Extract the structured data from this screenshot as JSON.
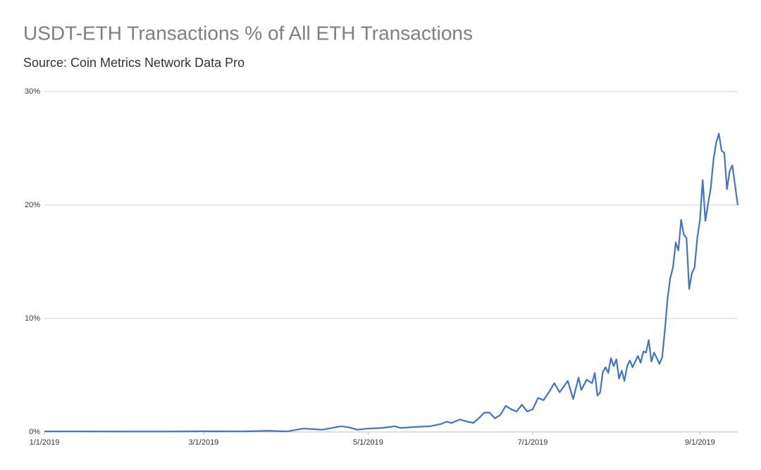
{
  "chart_data": {
    "type": "line",
    "title": "USDT-ETH Transactions % of All ETH Transactions",
    "subtitle": "Source: Coin Metrics Network Data Pro",
    "color": "#4472c4",
    "grid": true,
    "xlim": [
      "1/1/2019",
      "9/15/2019"
    ],
    "xticks": [
      "1/1/2019",
      "3/1/2019",
      "5/1/2019",
      "7/1/2019",
      "9/1/2019"
    ],
    "ylim": [
      0,
      30
    ],
    "yticks": [
      {
        "value": 0,
        "label": "0%"
      },
      {
        "value": 10,
        "label": "10%"
      },
      {
        "value": 20,
        "label": "20%"
      },
      {
        "value": 30,
        "label": "30%"
      }
    ],
    "x": [
      "1/1/2019",
      "1/15/2019",
      "2/1/2019",
      "2/15/2019",
      "3/1/2019",
      "3/15/2019",
      "3/25/2019",
      "4/1/2019",
      "4/7/2019",
      "4/14/2019",
      "4/21/2019",
      "4/24/2019",
      "4/27/2019",
      "5/1/2019",
      "5/6/2019",
      "5/11/2019",
      "5/13/2019",
      "5/19/2019",
      "5/24/2019",
      "5/28/2019",
      "5/30/2019",
      "6/1/2019",
      "6/4/2019",
      "6/7/2019",
      "6/9/2019",
      "6/11/2019",
      "6/13/2019",
      "6/15/2019",
      "6/17/2019",
      "6/19/2019",
      "6/21/2019",
      "6/23/2019",
      "6/25/2019",
      "6/27/2019",
      "6/29/2019",
      "7/1/2019",
      "7/3/2019",
      "7/5/2019",
      "7/7/2019",
      "7/9/2019",
      "7/11/2019",
      "7/14/2019",
      "7/16/2019",
      "7/18/2019",
      "7/19/2019",
      "7/21/2019",
      "7/23/2019",
      "7/24/2019",
      "7/25/2019",
      "7/26/2019",
      "7/27/2019",
      "7/28/2019",
      "7/29/2019",
      "7/30/2019",
      "7/31/2019",
      "8/1/2019",
      "8/2/2019",
      "8/3/2019",
      "8/4/2019",
      "8/5/2019",
      "8/6/2019",
      "8/7/2019",
      "8/9/2019",
      "8/10/2019",
      "8/11/2019",
      "8/12/2019",
      "8/13/2019",
      "8/14/2019",
      "8/15/2019",
      "8/17/2019",
      "8/18/2019",
      "8/19/2019",
      "8/20/2019",
      "8/21/2019",
      "8/22/2019",
      "8/23/2019",
      "8/24/2019",
      "8/25/2019",
      "8/26/2019",
      "8/27/2019",
      "8/28/2019",
      "8/29/2019",
      "8/30/2019",
      "8/31/2019",
      "9/1/2019",
      "9/2/2019",
      "9/3/2019",
      "9/4/2019",
      "9/5/2019",
      "9/6/2019",
      "9/7/2019",
      "9/8/2019",
      "9/9/2019",
      "9/10/2019",
      "9/11/2019",
      "9/12/2019",
      "9/13/2019",
      "9/15/2019"
    ],
    "values": [
      0.05,
      0.05,
      0.04,
      0.04,
      0.06,
      0.05,
      0.1,
      0.05,
      0.3,
      0.2,
      0.5,
      0.4,
      0.2,
      0.3,
      0.35,
      0.5,
      0.35,
      0.45,
      0.5,
      0.7,
      0.9,
      0.8,
      1.1,
      0.9,
      0.8,
      1.2,
      1.7,
      1.7,
      1.2,
      1.5,
      2.3,
      2.0,
      1.8,
      2.4,
      1.8,
      2.0,
      3.0,
      2.8,
      3.5,
      4.3,
      3.5,
      4.5,
      2.9,
      4.8,
      3.7,
      4.6,
      4.3,
      5.2,
      3.2,
      3.5,
      5.3,
      5.7,
      5.2,
      6.5,
      5.8,
      6.4,
      4.7,
      5.4,
      4.5,
      5.8,
      6.3,
      5.7,
      6.7,
      6.1,
      7.1,
      7.0,
      8.1,
      6.2,
      7.0,
      6.0,
      6.6,
      9.0,
      11.8,
      13.6,
      14.5,
      16.7,
      16.0,
      18.7,
      17.4,
      17.1,
      12.6,
      14.0,
      14.5,
      17.1,
      18.7,
      22.2,
      18.6,
      20.1,
      21.5,
      24.0,
      25.5,
      26.3,
      24.8,
      24.6,
      21.4,
      23.0,
      23.5,
      20.0
    ]
  }
}
